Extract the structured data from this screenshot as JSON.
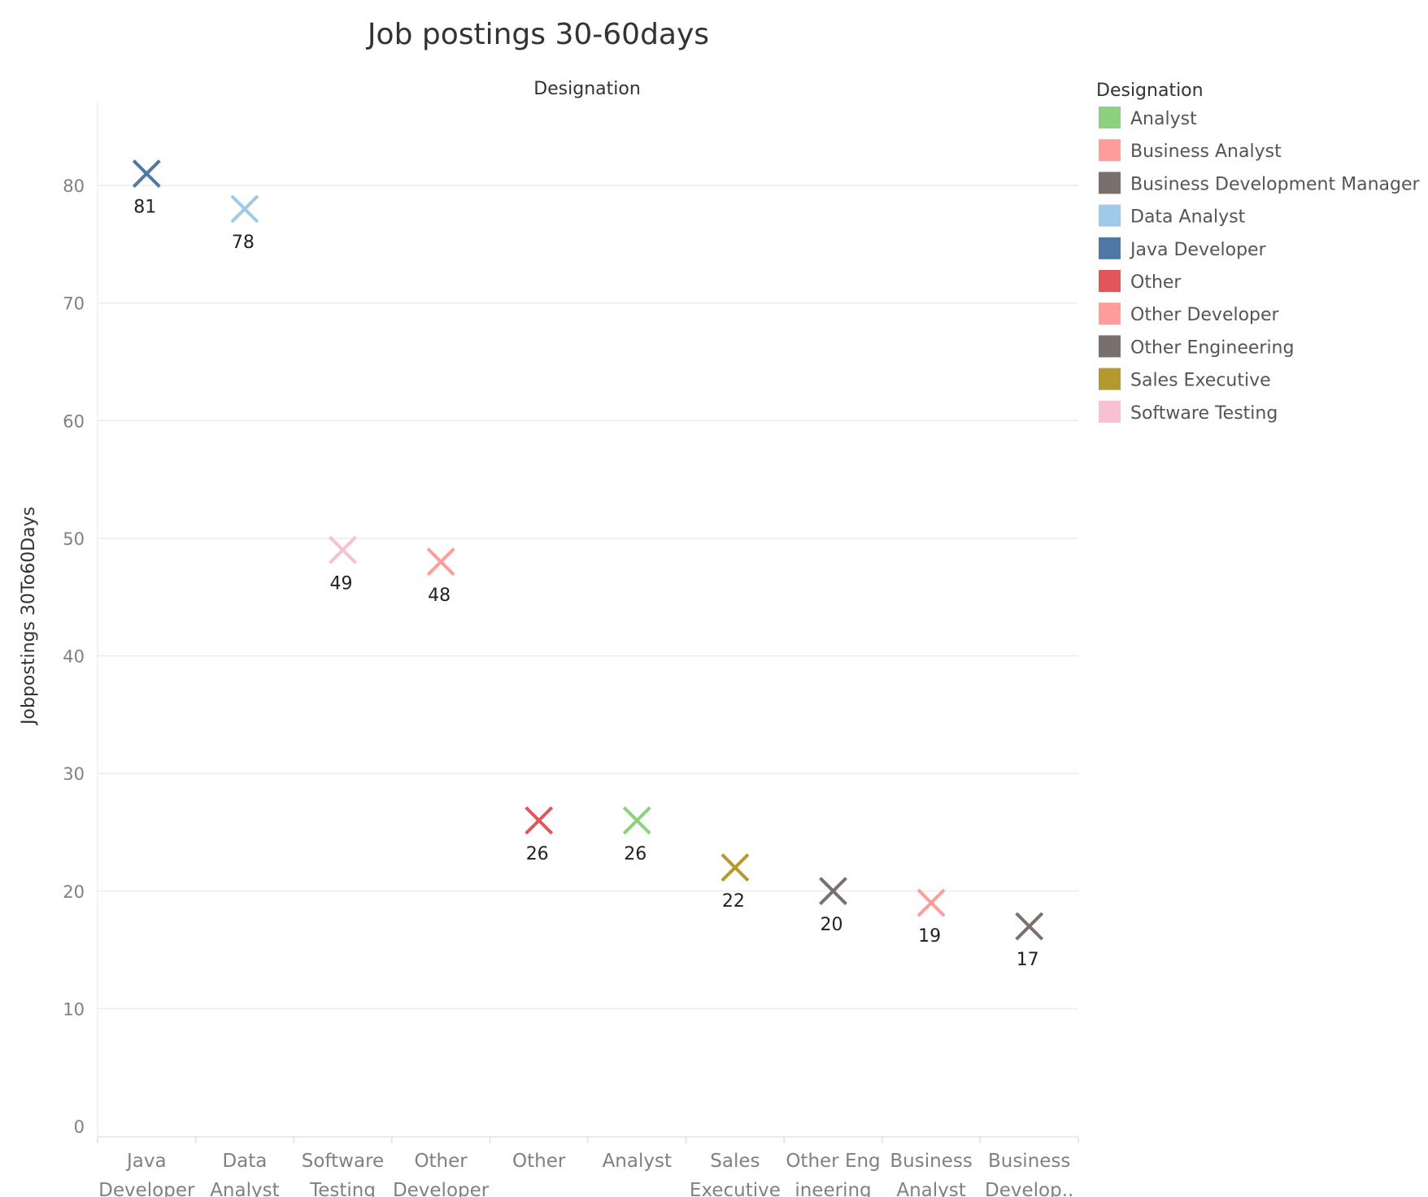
{
  "chart_data": {
    "type": "scatter",
    "title": "Job postings 30-60days",
    "column_header": "Designation",
    "ylabel": "Jobpostings 30To60Days",
    "ylim": [
      0,
      87
    ],
    "yticks": [
      0,
      10,
      20,
      30,
      40,
      50,
      60,
      70,
      80
    ],
    "grid": "horizontal",
    "marker": "x",
    "categories": [
      [
        "Java",
        "Developer"
      ],
      [
        "Data",
        "Analyst"
      ],
      [
        "Software",
        "Testing"
      ],
      [
        "Other",
        "Developer"
      ],
      [
        "Other"
      ],
      [
        "Analyst"
      ],
      [
        "Sales",
        "Executive"
      ],
      [
        "Other Eng",
        "ineering"
      ],
      [
        "Business",
        "Analyst"
      ],
      [
        "Business",
        "Develop.."
      ]
    ],
    "values": [
      81,
      78,
      49,
      48,
      26,
      26,
      22,
      20,
      19,
      17
    ],
    "point_colors": [
      "#4e79a7",
      "#a0cbe8",
      "#fabfd2",
      "#ff9d9a",
      "#e15759",
      "#8cd17d",
      "#b6992d",
      "#79706e",
      "#ff9d9a",
      "#79706e"
    ],
    "legend": {
      "title": "Designation",
      "position": "right",
      "items": [
        {
          "label": "Analyst",
          "color": "#8cd17d"
        },
        {
          "label": "Business Analyst",
          "color": "#ff9d9a"
        },
        {
          "label": "Business Development Manager",
          "color": "#79706e"
        },
        {
          "label": "Data Analyst",
          "color": "#a0cbe8"
        },
        {
          "label": "Java Developer",
          "color": "#4e79a7"
        },
        {
          "label": "Other",
          "color": "#e15759"
        },
        {
          "label": "Other Developer",
          "color": "#ff9d9a"
        },
        {
          "label": "Other Engineering",
          "color": "#79706e"
        },
        {
          "label": "Sales Executive",
          "color": "#b6992d"
        },
        {
          "label": "Software Testing",
          "color": "#fabfd2"
        }
      ]
    }
  }
}
